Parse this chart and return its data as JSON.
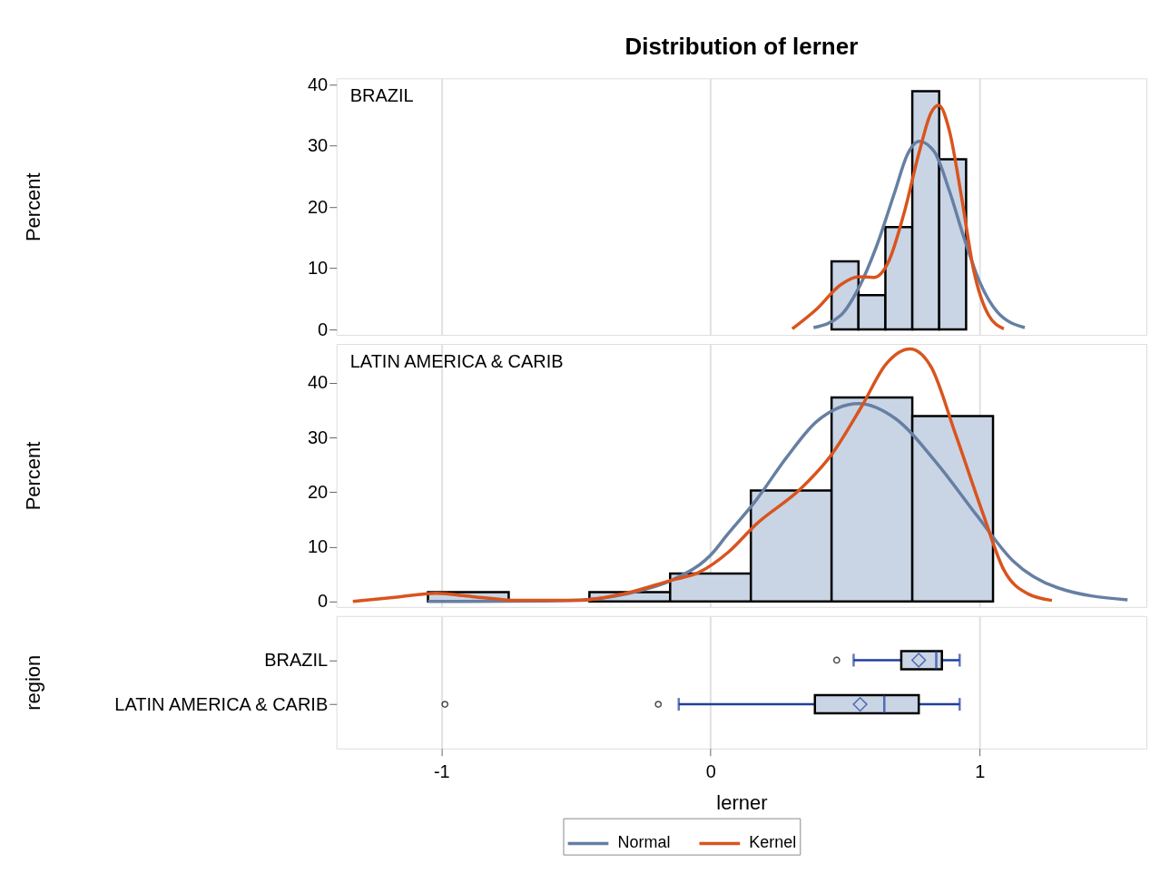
{
  "chart_data": [
    {
      "type": "histogram",
      "title": "Distribution of lerner",
      "ylabel": "Percent",
      "annotations": [
        "BRAZIL"
      ],
      "color": "#c9d5e5",
      "bins": [
        0.45,
        0.55,
        0.65,
        0.75,
        0.85,
        0.95
      ],
      "values": [
        11.1,
        5.6,
        16.7,
        38.9,
        27.8
      ],
      "series": [
        {
          "name": "Normal",
          "type": "line",
          "color": "#667fa3",
          "x": [
            0.383,
            0.484,
            0.551,
            0.618,
            0.686,
            0.731,
            0.776,
            0.832,
            0.888,
            0.944,
            1.0,
            1.067,
            1.168
          ],
          "values": [
            0.3,
            2.3,
            6.8,
            13.7,
            22.6,
            28.5,
            30.7,
            29.0,
            22.6,
            14.7,
            7.8,
            2.8,
            0.3
          ]
        },
        {
          "name": "Kernel",
          "type": "line",
          "color": "#d9541e",
          "x": [
            0.304,
            0.394,
            0.484,
            0.551,
            0.607,
            0.663,
            0.72,
            0.776,
            0.82,
            0.848,
            0.888,
            0.933,
            0.978,
            1.034,
            1.09
          ],
          "values": [
            0.1,
            3.3,
            7.3,
            8.6,
            8.5,
            11.2,
            19.1,
            29.0,
            35.4,
            36.6,
            32.4,
            21.6,
            9.7,
            2.3,
            0.1
          ]
        }
      ],
      "xlim": [
        -1.39,
        1.62
      ],
      "xticks": [
        -1,
        0,
        1
      ],
      "ylim": [
        -0.9,
        41
      ],
      "yticks": [
        0,
        10,
        20,
        30,
        40
      ],
      "grid": "x",
      "tick_labels": "y",
      "legend": "bottom"
    },
    {
      "type": "histogram",
      "ylabel": "Percent",
      "annotations": [
        "LATIN AMERICA & CARIB"
      ],
      "color": "#c9d5e5",
      "bins": [
        -1.05,
        -0.75,
        -0.45,
        -0.15,
        0.15,
        0.45,
        0.75,
        1.05
      ],
      "values": [
        1.7,
        0,
        1.7,
        5.1,
        20.3,
        37.3,
        33.9
      ],
      "series": [
        {
          "name": "Normal",
          "type": "line",
          "color": "#667fa3",
          "x": [
            -1.05,
            -0.616,
            -0.448,
            -0.268,
            -0.145,
            0.012,
            0.057,
            0.169,
            0.282,
            0.394,
            0.551,
            0.686,
            0.843,
            0.989,
            1.123,
            1.291,
            1.55
          ],
          "values": [
            0,
            0.1,
            0.4,
            1.9,
            3.9,
            9.1,
            11.9,
            18.5,
            26.3,
            32.9,
            36.2,
            33.5,
            25.2,
            15.8,
            7.5,
            2.5,
            0.3
          ]
        },
        {
          "name": "Kernel",
          "type": "line",
          "color": "#d9541e",
          "x": [
            -1.329,
            -1.166,
            -1.02,
            -0.886,
            -0.717,
            -0.493,
            -0.324,
            -0.145,
            -0.044,
            0.068,
            0.169,
            0.337,
            0.449,
            0.562,
            0.652,
            0.742,
            0.82,
            0.91,
            1.011,
            1.09,
            1.18,
            1.269
          ],
          "values": [
            0,
            0.8,
            1.5,
            0.9,
            0.2,
            0.2,
            1.4,
            3.9,
            5.3,
            9.1,
            14.1,
            20.7,
            26.8,
            35.7,
            43.4,
            46.2,
            42.9,
            30.7,
            16.3,
            5.8,
            1.4,
            0.2
          ]
        }
      ],
      "xlim": [
        -1.39,
        1.62
      ],
      "xticks": [
        -1,
        0,
        1
      ],
      "ylim": [
        -1,
        47.1
      ],
      "yticks": [
        0,
        10,
        20,
        30,
        40
      ],
      "grid": "x",
      "tick_labels": "y"
    },
    {
      "type": "box",
      "orientation": "horizontal",
      "xlabel": "lerner",
      "ylabel": "region",
      "categories": [
        "BRAZIL",
        "LATIN AMERICA & CARIB"
      ],
      "color": "#c9d5e5",
      "boxes": [
        {
          "low": 0.532,
          "q1": 0.709,
          "median": 0.839,
          "q3": 0.86,
          "high": 0.926,
          "mean": 0.774,
          "outliers": [
            0.469
          ]
        },
        {
          "low": -0.118,
          "q1": 0.388,
          "median": 0.646,
          "q3": 0.774,
          "high": 0.926,
          "mean": 0.556,
          "outliers": [
            -0.987,
            -0.194
          ]
        }
      ],
      "xlim": [
        -1.39,
        1.62
      ],
      "xticks": [
        -1,
        0,
        1
      ],
      "grid": "x"
    }
  ]
}
